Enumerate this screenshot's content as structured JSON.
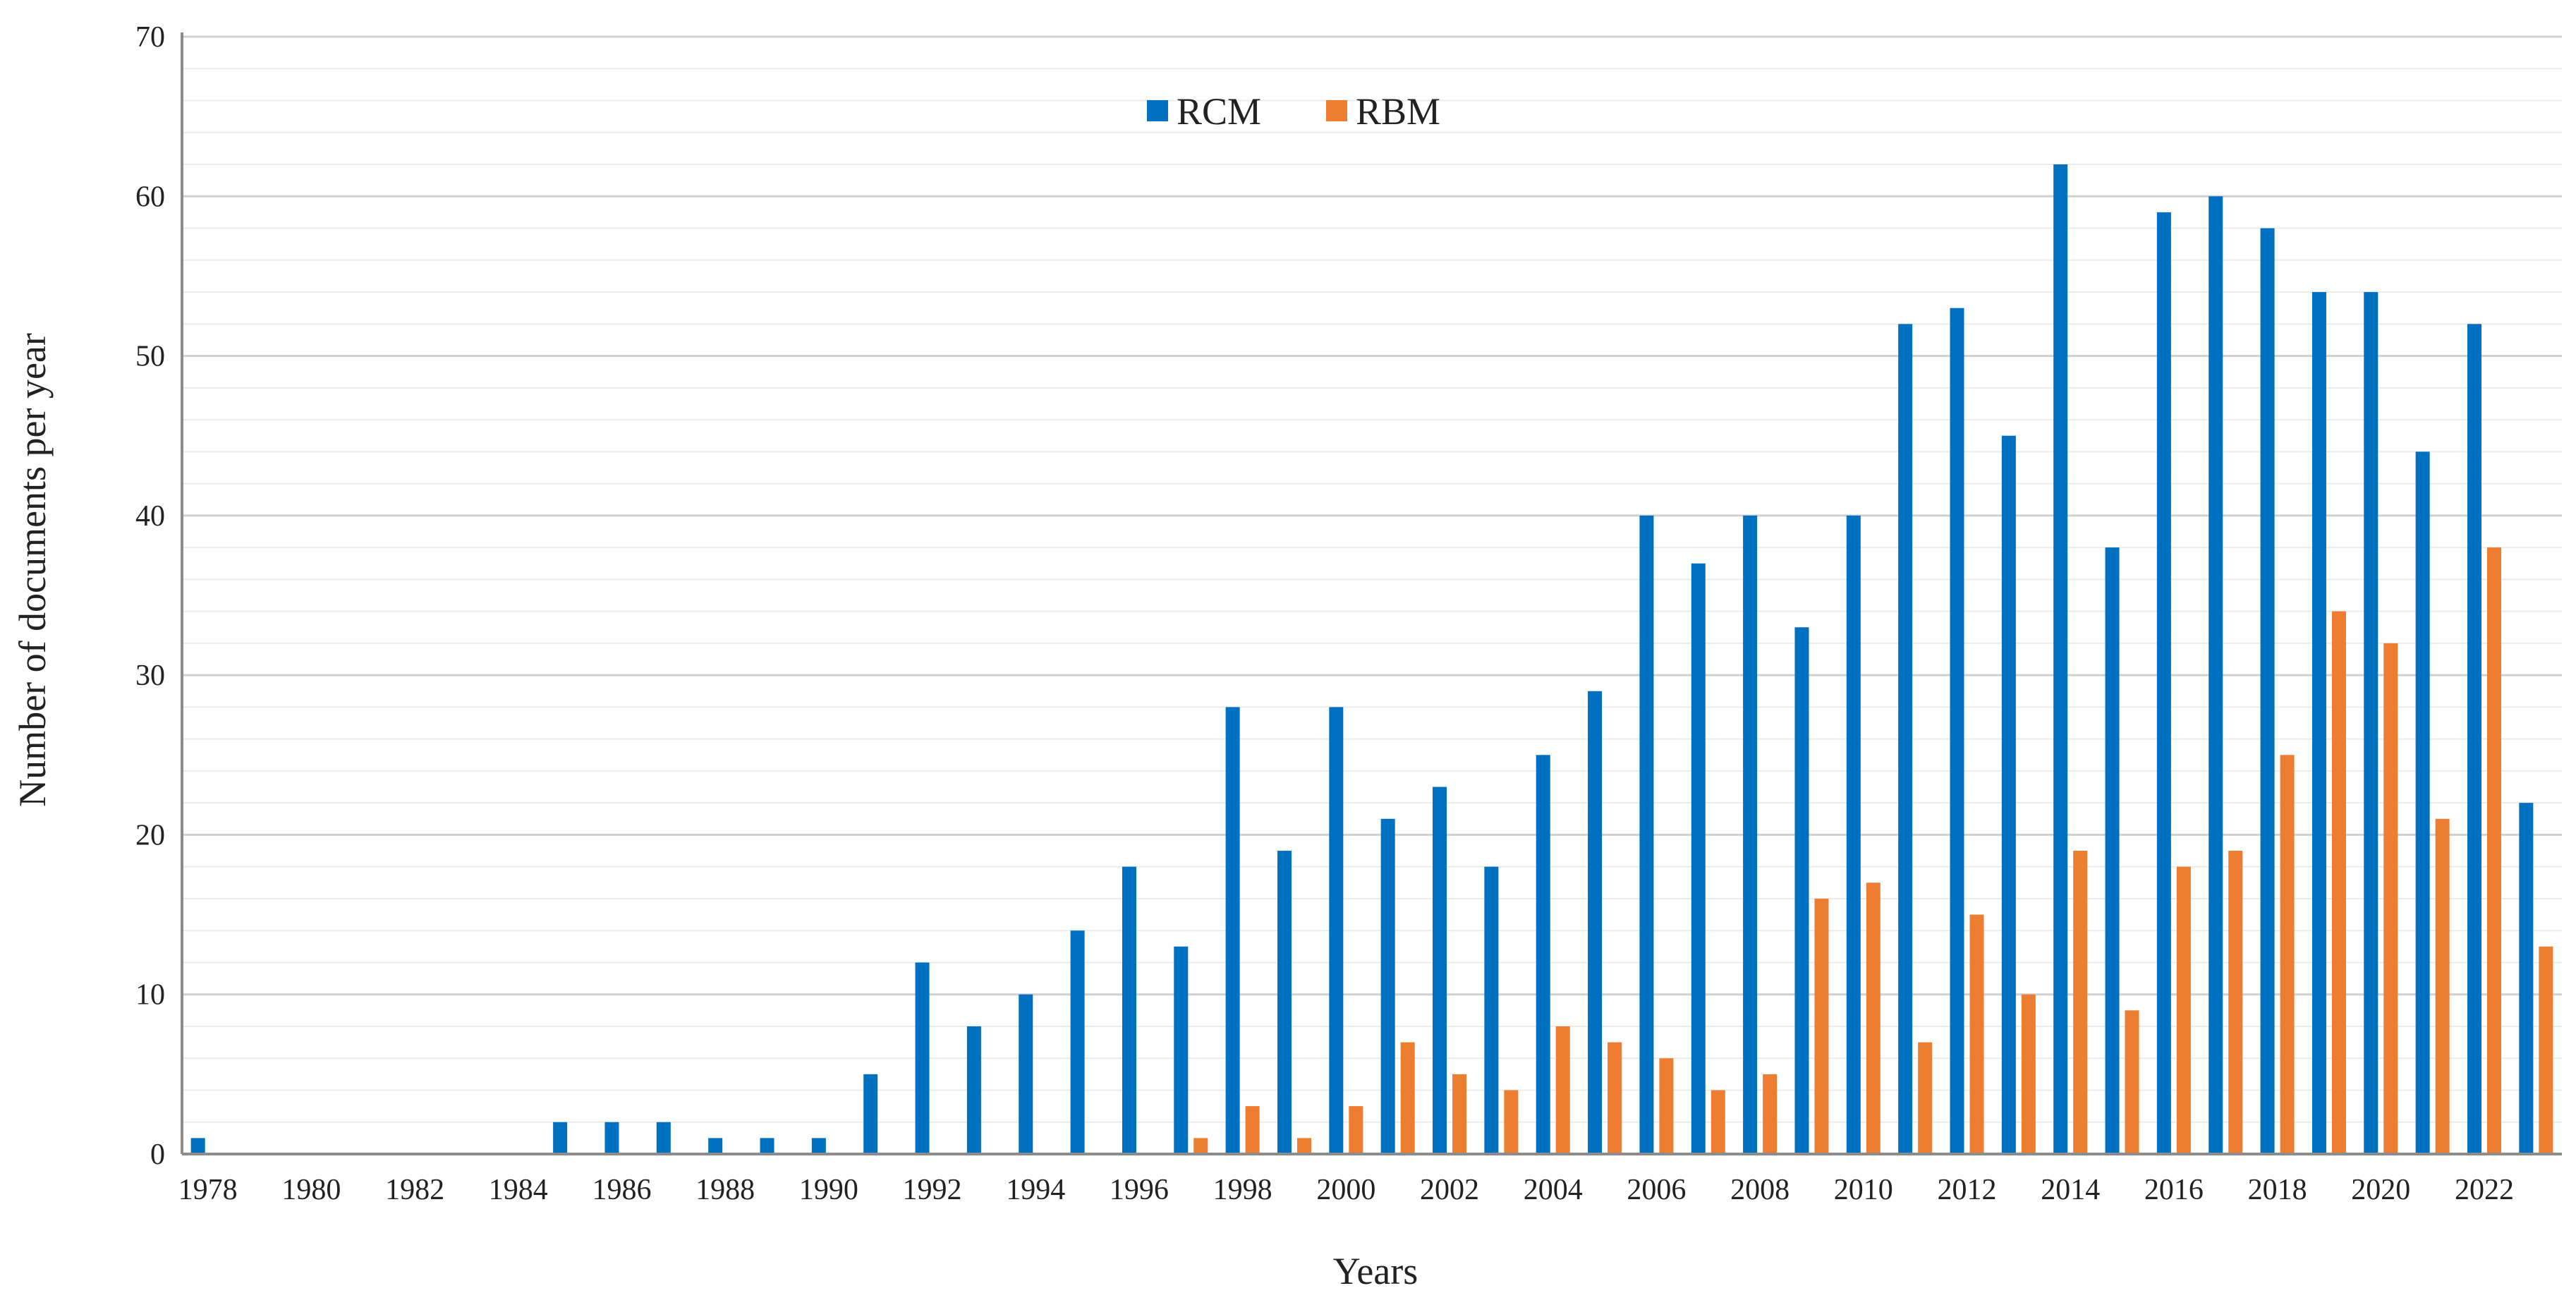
{
  "chart_data": {
    "type": "bar",
    "xlabel": "Years",
    "ylabel": "Number of documents per year",
    "ylim": [
      0,
      70
    ],
    "y_major_ticks": [
      0,
      10,
      20,
      30,
      40,
      50,
      60,
      70
    ],
    "y_minor_step": 2,
    "grid": true,
    "legend_position": "top-center",
    "categories": [
      1978,
      1979,
      1980,
      1981,
      1982,
      1983,
      1984,
      1985,
      1986,
      1987,
      1988,
      1989,
      1990,
      1991,
      1992,
      1993,
      1994,
      1995,
      1996,
      1997,
      1998,
      1999,
      2000,
      2001,
      2002,
      2003,
      2004,
      2005,
      2006,
      2007,
      2008,
      2009,
      2010,
      2011,
      2012,
      2013,
      2014,
      2015,
      2016,
      2017,
      2018,
      2019,
      2020,
      2021,
      2022,
      2023
    ],
    "x_tick_labels": [
      "1978",
      "1980",
      "1982",
      "1984",
      "1986",
      "1988",
      "1990",
      "1992",
      "1994",
      "1996",
      "1998",
      "2000",
      "2002",
      "2004",
      "2006",
      "2008",
      "2010",
      "2012",
      "2014",
      "2016",
      "2018",
      "2020",
      "2022"
    ],
    "series": [
      {
        "name": "RCM",
        "color": "#0070C0",
        "values": [
          1,
          0,
          0,
          0,
          0,
          0,
          0,
          2,
          2,
          2,
          1,
          1,
          1,
          5,
          12,
          8,
          10,
          14,
          18,
          13,
          28,
          19,
          28,
          21,
          23,
          18,
          25,
          29,
          40,
          37,
          40,
          33,
          40,
          52,
          53,
          45,
          62,
          38,
          59,
          60,
          58,
          54,
          54,
          44,
          52,
          22
        ]
      },
      {
        "name": "RBM",
        "color": "#ED7D31",
        "values": [
          0,
          0,
          0,
          0,
          0,
          0,
          0,
          0,
          0,
          0,
          0,
          0,
          0,
          0,
          0,
          0,
          0,
          0,
          0,
          1,
          3,
          1,
          3,
          7,
          5,
          4,
          8,
          7,
          6,
          4,
          5,
          16,
          17,
          7,
          15,
          10,
          19,
          9,
          18,
          19,
          25,
          34,
          32,
          21,
          38,
          13
        ]
      }
    ]
  }
}
